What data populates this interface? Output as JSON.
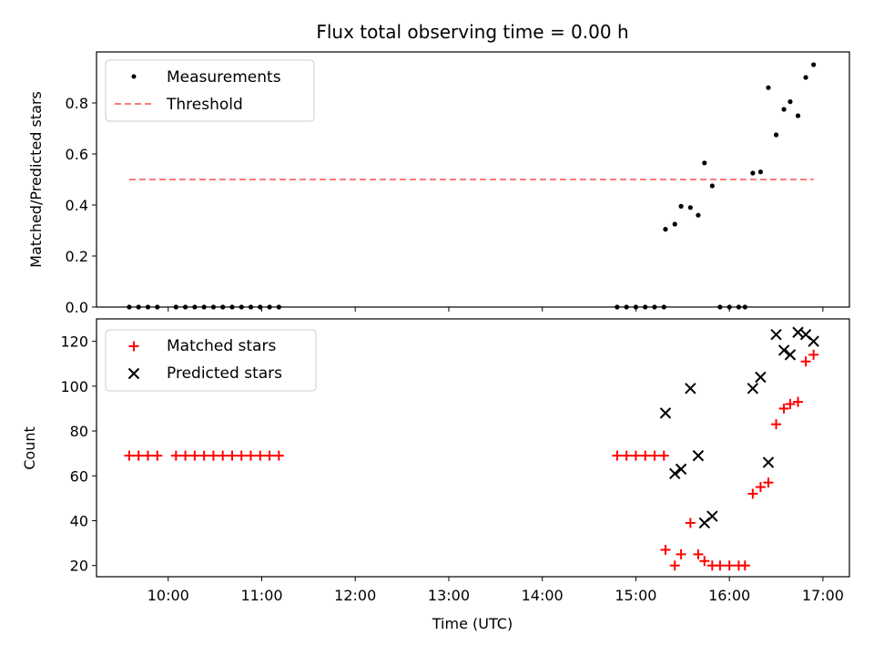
{
  "chart_data": {
    "type": "scatter",
    "title": "Flux total observing time = 0.00 h",
    "xlabel": "Time (UTC)",
    "x_ticks": [
      "10:00",
      "11:00",
      "12:00",
      "13:00",
      "14:00",
      "15:00",
      "16:00",
      "17:00"
    ],
    "xlim": [
      "09:14",
      "17:17"
    ],
    "panels": [
      {
        "name": "ratio",
        "ylabel": "Matched/Predicted stars",
        "ylim": [
          0,
          1.0
        ],
        "y_ticks": [
          0.0,
          0.2,
          0.4,
          0.6,
          0.8
        ],
        "legend_position": "upper-left",
        "series": [
          {
            "name": "Measurements",
            "marker": "dot",
            "color": "#000000",
            "points": [
              [
                "09:35",
                0
              ],
              [
                "09:41",
                0
              ],
              [
                "09:47",
                0
              ],
              [
                "09:53",
                0
              ],
              [
                "10:05",
                0
              ],
              [
                "10:11",
                0
              ],
              [
                "10:17",
                0
              ],
              [
                "10:23",
                0
              ],
              [
                "10:29",
                0
              ],
              [
                "10:35",
                0
              ],
              [
                "10:41",
                0
              ],
              [
                "10:47",
                0
              ],
              [
                "10:53",
                0
              ],
              [
                "10:59",
                0
              ],
              [
                "11:05",
                0
              ],
              [
                "11:11",
                0
              ],
              [
                "14:48",
                0
              ],
              [
                "14:54",
                0
              ],
              [
                "15:00",
                0
              ],
              [
                "15:06",
                0
              ],
              [
                "15:12",
                0
              ],
              [
                "15:18",
                0
              ],
              [
                "15:19",
                0.305
              ],
              [
                "15:25",
                0.325
              ],
              [
                "15:29",
                0.395
              ],
              [
                "15:35",
                0.39
              ],
              [
                "15:40",
                0.36
              ],
              [
                "15:44",
                0.565
              ],
              [
                "15:49",
                0.475
              ],
              [
                "15:54",
                0
              ],
              [
                "16:00",
                0
              ],
              [
                "16:06",
                0
              ],
              [
                "16:10",
                0
              ],
              [
                "16:15",
                0.525
              ],
              [
                "16:20",
                0.53
              ],
              [
                "16:25",
                0.86
              ],
              [
                "16:30",
                0.675
              ],
              [
                "16:35",
                0.775
              ],
              [
                "16:39",
                0.805
              ],
              [
                "16:44",
                0.75
              ],
              [
                "16:49",
                0.9
              ],
              [
                "16:54",
                0.95
              ]
            ]
          },
          {
            "name": "Threshold",
            "style": "dashed",
            "color": "#ff7a7a",
            "x": [
              "09:35",
              "16:54"
            ],
            "y": 0.5
          }
        ]
      },
      {
        "name": "counts",
        "ylabel": "Count",
        "ylim": [
          15,
          130
        ],
        "y_ticks": [
          20,
          40,
          60,
          80,
          100,
          120
        ],
        "legend_position": "upper-left",
        "series": [
          {
            "name": "Matched stars",
            "marker": "plus",
            "color": "#ff0000",
            "points": [
              [
                "09:35",
                69
              ],
              [
                "09:41",
                69
              ],
              [
                "09:47",
                69
              ],
              [
                "09:53",
                69
              ],
              [
                "10:05",
                69
              ],
              [
                "10:11",
                69
              ],
              [
                "10:17",
                69
              ],
              [
                "10:23",
                69
              ],
              [
                "10:29",
                69
              ],
              [
                "10:35",
                69
              ],
              [
                "10:41",
                69
              ],
              [
                "10:47",
                69
              ],
              [
                "10:53",
                69
              ],
              [
                "10:59",
                69
              ],
              [
                "11:05",
                69
              ],
              [
                "11:11",
                69
              ],
              [
                "14:48",
                69
              ],
              [
                "14:54",
                69
              ],
              [
                "15:00",
                69
              ],
              [
                "15:06",
                69
              ],
              [
                "15:12",
                69
              ],
              [
                "15:18",
                69
              ],
              [
                "15:19",
                27
              ],
              [
                "15:25",
                20
              ],
              [
                "15:29",
                25
              ],
              [
                "15:35",
                39
              ],
              [
                "15:40",
                25
              ],
              [
                "15:44",
                22
              ],
              [
                "15:49",
                20
              ],
              [
                "15:54",
                20
              ],
              [
                "16:00",
                20
              ],
              [
                "16:06",
                20
              ],
              [
                "16:10",
                20
              ],
              [
                "16:15",
                52
              ],
              [
                "16:20",
                55
              ],
              [
                "16:25",
                57
              ],
              [
                "16:30",
                83
              ],
              [
                "16:35",
                90
              ],
              [
                "16:39",
                92
              ],
              [
                "16:44",
                93
              ],
              [
                "16:49",
                111
              ],
              [
                "16:54",
                114
              ]
            ]
          },
          {
            "name": "Predicted stars",
            "marker": "x",
            "color": "#000000",
            "points": [
              [
                "15:19",
                88
              ],
              [
                "15:25",
                61
              ],
              [
                "15:29",
                63
              ],
              [
                "15:35",
                99
              ],
              [
                "15:40",
                69
              ],
              [
                "15:44",
                39
              ],
              [
                "15:49",
                42
              ],
              [
                "16:15",
                99
              ],
              [
                "16:20",
                104
              ],
              [
                "16:25",
                66
              ],
              [
                "16:30",
                123
              ],
              [
                "16:35",
                116
              ],
              [
                "16:39",
                114
              ],
              [
                "16:44",
                124
              ],
              [
                "16:49",
                123
              ],
              [
                "16:54",
                120
              ]
            ]
          }
        ]
      }
    ]
  }
}
